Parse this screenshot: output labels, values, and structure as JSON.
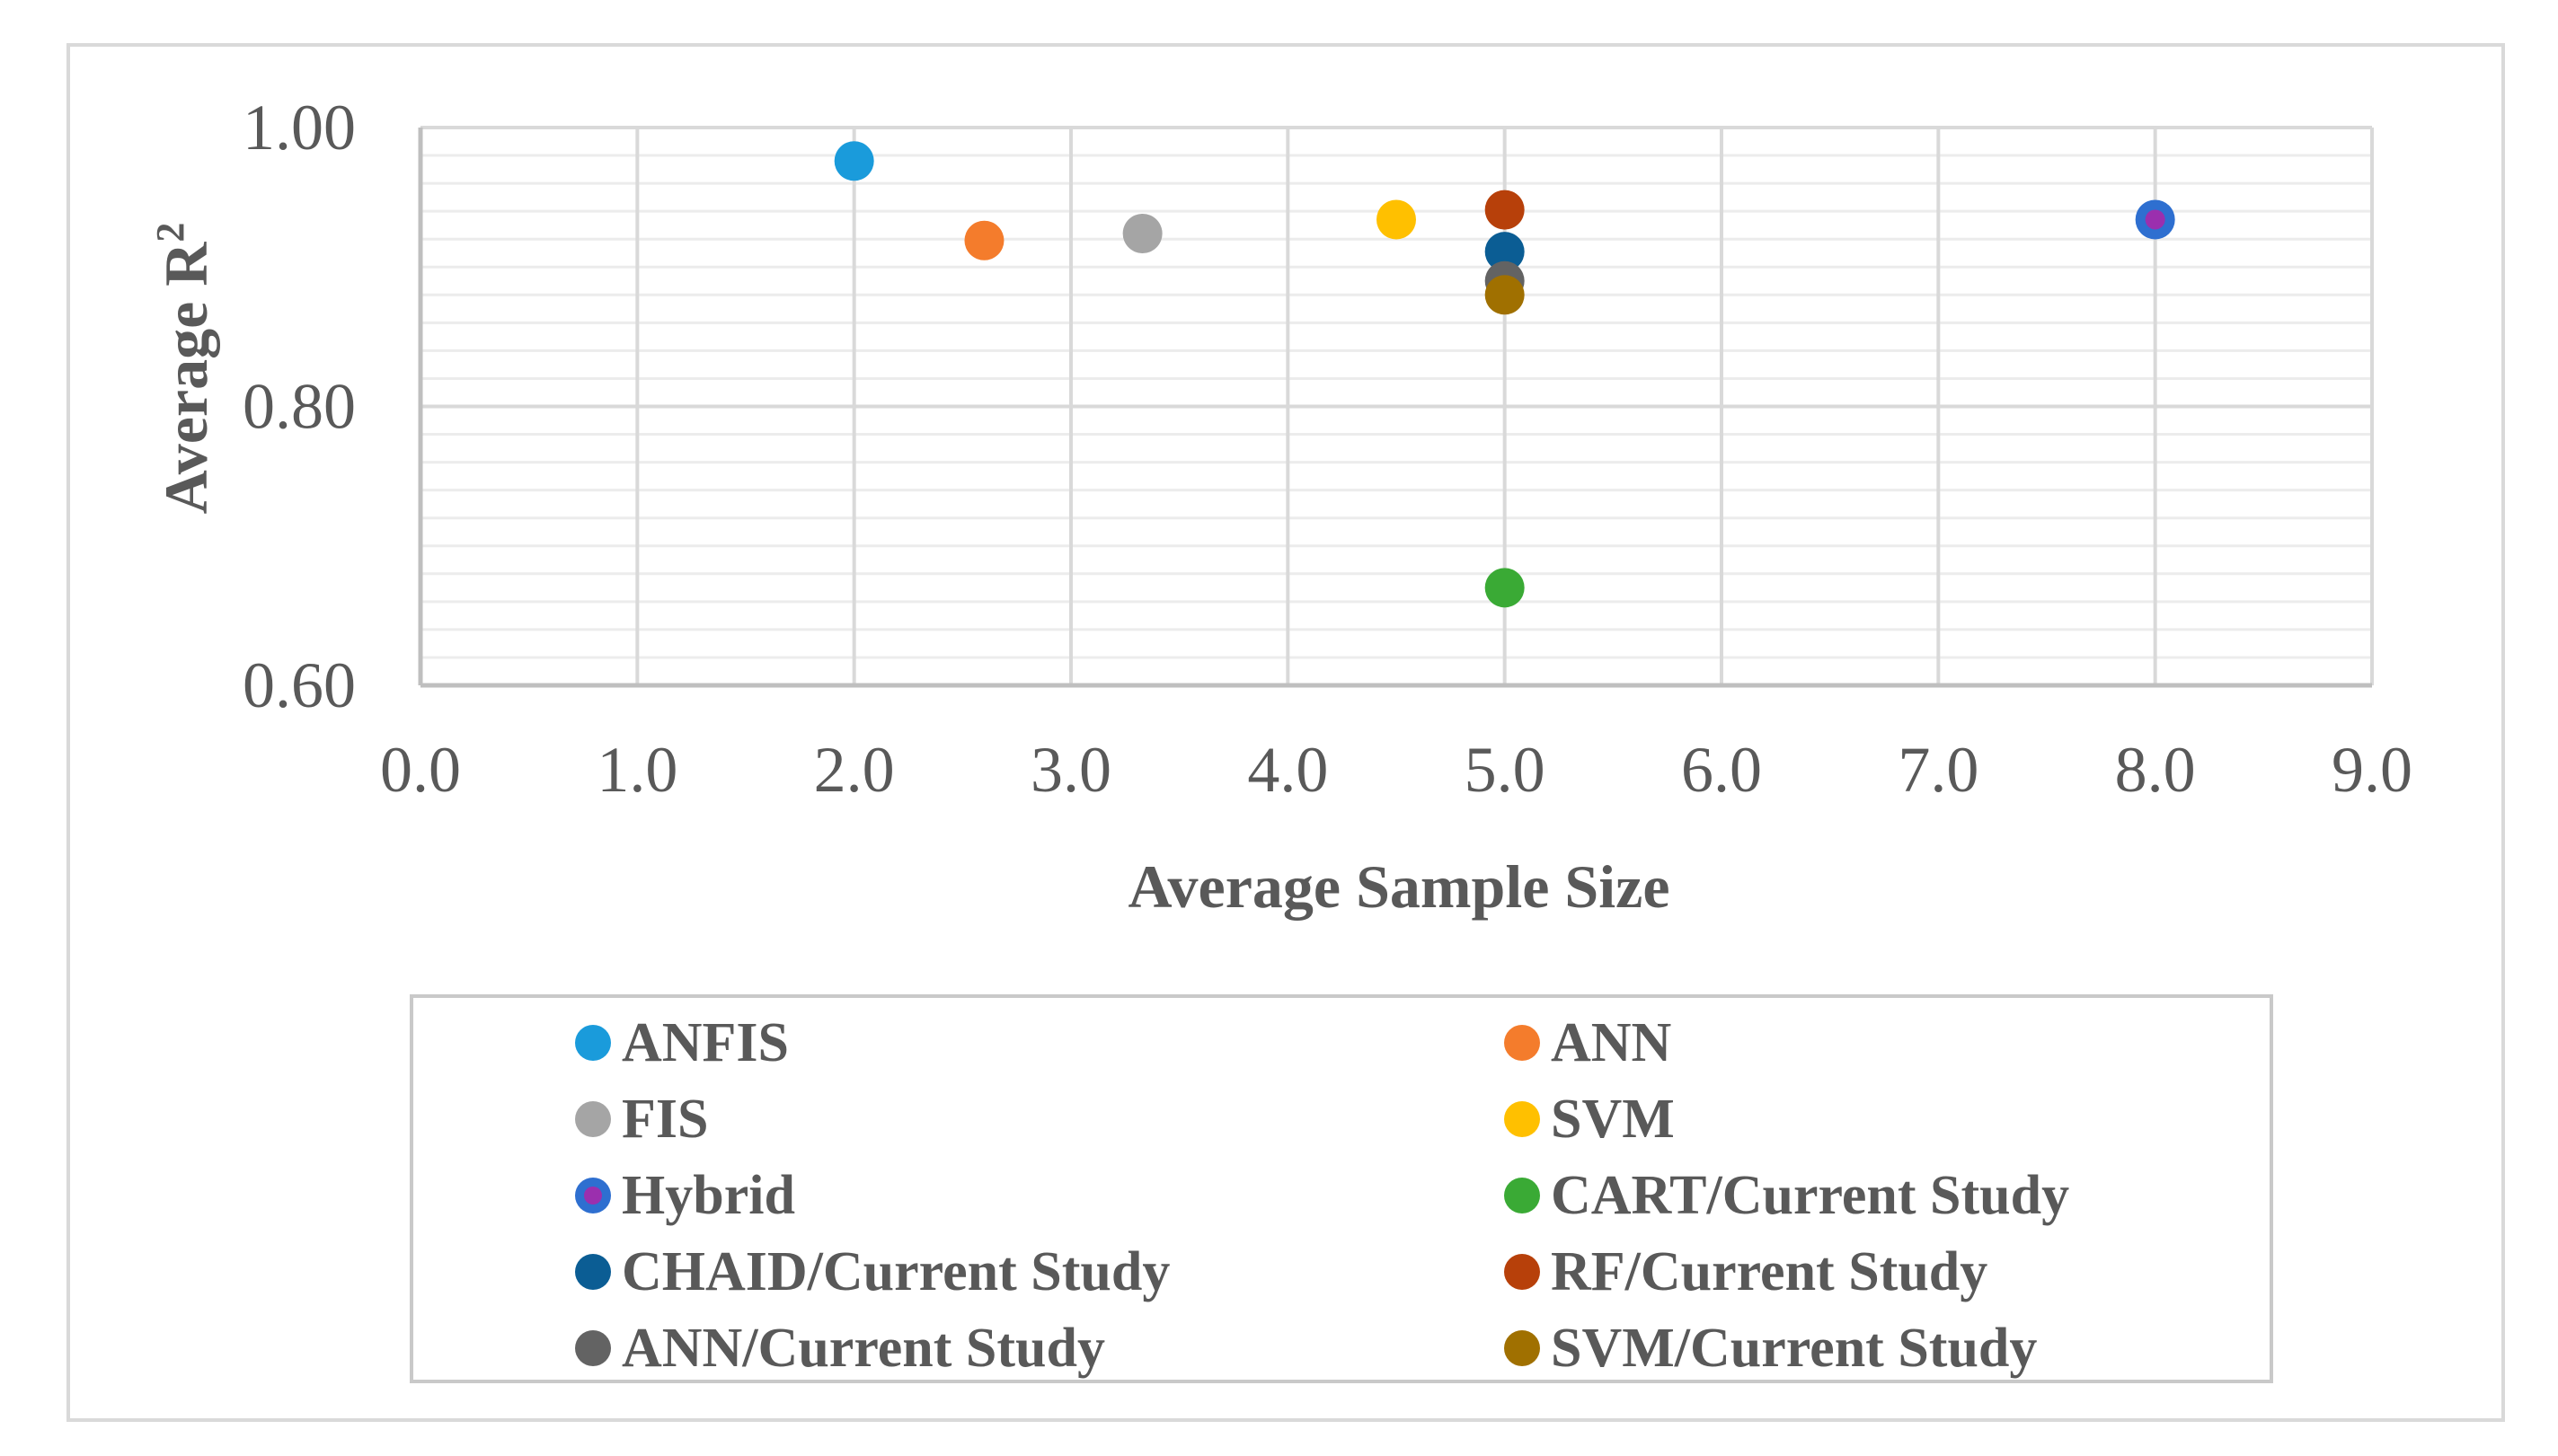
{
  "chart_data": {
    "type": "scatter",
    "title": "",
    "xlabel": "Average Sample Size",
    "ylabel_main": "Average R",
    "ylabel_sup": "2",
    "xlim": [
      0,
      9
    ],
    "ylim": [
      0.6,
      1.0
    ],
    "x_ticks": [
      "0.0",
      "1.0",
      "2.0",
      "3.0",
      "4.0",
      "5.0",
      "6.0",
      "7.0",
      "8.0",
      "9.0"
    ],
    "y_ticks": [
      "0.60",
      "0.80",
      "1.00"
    ],
    "grid": true,
    "legend_position": "bottom",
    "series": [
      {
        "name": "ANFIS",
        "color": "#1a9bdb",
        "points": [
          {
            "x": 2.0,
            "y": 0.976
          }
        ]
      },
      {
        "name": "ANN",
        "color": "#f47c2c",
        "points": [
          {
            "x": 2.6,
            "y": 0.919
          }
        ]
      },
      {
        "name": "FIS",
        "color": "#a5a5a5",
        "points": [
          {
            "x": 3.33,
            "y": 0.924
          }
        ]
      },
      {
        "name": "SVM",
        "color": "#ffc000",
        "points": [
          {
            "x": 4.5,
            "y": 0.934
          }
        ]
      },
      {
        "name": "Hybrid",
        "color": "#2e6fd0",
        "inner_color": "#9b2fae",
        "points": [
          {
            "x": 8.0,
            "y": 0.934
          }
        ]
      },
      {
        "name": "CART/Current Study",
        "color": "#3aaa35",
        "points": [
          {
            "x": 5.0,
            "y": 0.67
          }
        ]
      },
      {
        "name": "CHAID/Current Study",
        "color": "#0b5d94",
        "points": [
          {
            "x": 5.0,
            "y": 0.911
          }
        ]
      },
      {
        "name": "RF/Current Study",
        "color": "#b7400a",
        "points": [
          {
            "x": 5.0,
            "y": 0.941
          }
        ]
      },
      {
        "name": "ANN/Current Study",
        "color": "#636363",
        "points": [
          {
            "x": 5.0,
            "y": 0.89
          }
        ]
      },
      {
        "name": "SVM/Current Study",
        "color": "#a07000",
        "points": [
          {
            "x": 5.0,
            "y": 0.88
          }
        ]
      }
    ]
  }
}
